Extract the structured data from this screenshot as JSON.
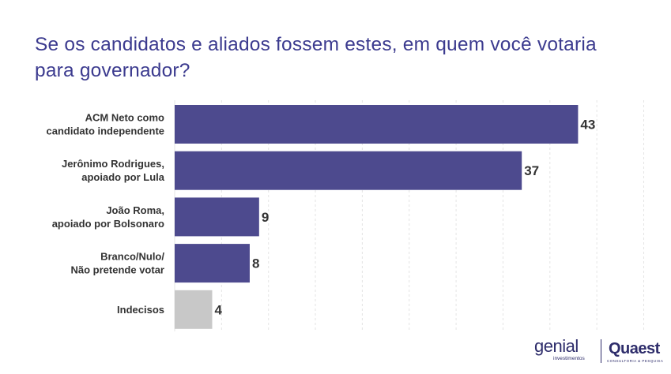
{
  "title": "Se os candidatos e aliados fossem estes, em quem você votaria para governador?",
  "chart_data": {
    "type": "bar",
    "orientation": "horizontal",
    "categories": [
      [
        "ACM Neto como",
        "candidato independente"
      ],
      [
        "Jerônimo Rodrigues,",
        "apoiado por Lula"
      ],
      [
        "João Roma,",
        "apoiado por Bolsonaro"
      ],
      [
        "Branco/Nulo/",
        "Não pretende votar"
      ],
      [
        "Indecisos"
      ]
    ],
    "values": [
      43,
      37,
      9,
      8,
      4
    ],
    "value_labels": [
      "43",
      "37",
      "9",
      "8",
      "4"
    ],
    "xlim": [
      0,
      51
    ],
    "grid": "vertical dashed",
    "colors": {
      "bar": "#4d4a8e",
      "bar_undecided": "#c8c8c8",
      "title": "#3c3b8f"
    }
  },
  "logos": {
    "genial": {
      "word": "genial",
      "sub": "investimentos"
    },
    "quaest": {
      "word": "Quaest",
      "sub": "CONSULTORIA & PESQUISA"
    }
  }
}
